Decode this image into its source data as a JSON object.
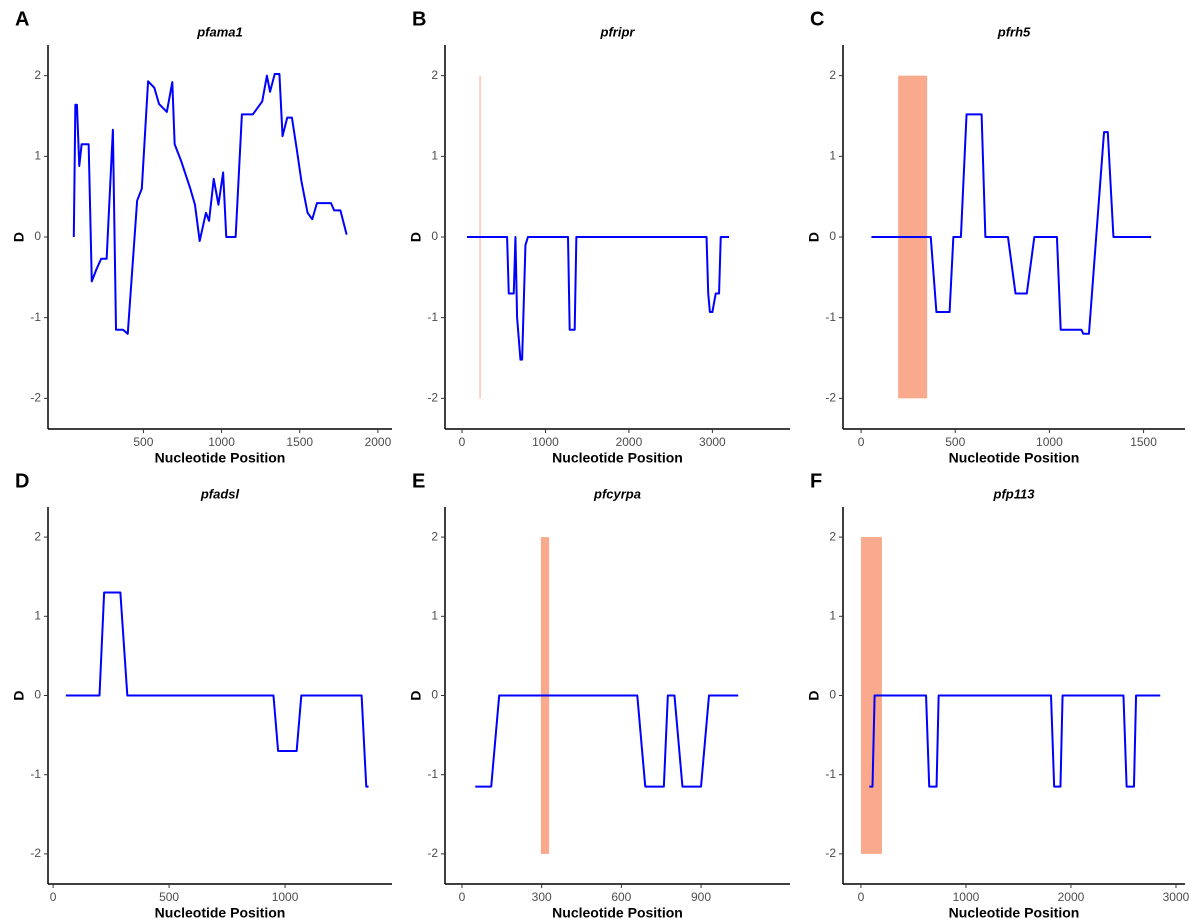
{
  "chart_data": [
    {
      "type": "line",
      "panel": "A",
      "title": "pfama1",
      "x_label": "Nucleotide Position",
      "y_label": "D",
      "color": "#0000ff",
      "x": [
        55,
        65,
        75,
        90,
        105,
        150,
        170,
        200,
        230,
        265,
        305,
        325,
        370,
        400,
        460,
        490,
        530,
        570,
        600,
        650,
        685,
        700,
        740,
        800,
        830,
        860,
        900,
        920,
        950,
        980,
        1010,
        1030,
        1090,
        1130,
        1200,
        1260,
        1290,
        1310,
        1340,
        1370,
        1390,
        1420,
        1450,
        1480,
        1510,
        1550,
        1580,
        1610,
        1700,
        1720,
        1760,
        1800
      ],
      "values": [
        0,
        1.64,
        1.64,
        0.88,
        1.15,
        1.15,
        -0.55,
        -0.4,
        -0.27,
        -0.27,
        1.33,
        -1.15,
        -1.15,
        -1.2,
        0.45,
        0.6,
        1.93,
        1.85,
        1.65,
        1.55,
        1.92,
        1.15,
        0.95,
        0.6,
        0.4,
        -0.05,
        0.3,
        0.2,
        0.72,
        0.4,
        0.8,
        0,
        0,
        1.52,
        1.52,
        1.68,
        2,
        1.8,
        2.02,
        2.02,
        1.25,
        1.48,
        1.48,
        1.1,
        0.7,
        0.3,
        0.22,
        0.42,
        0.42,
        0.33,
        0.33,
        0.03
      ],
      "xlim": [
        -110,
        2090
      ],
      "xticks": [
        500,
        1000,
        1500,
        2000
      ],
      "ylim": [
        -2.38,
        2.38
      ],
      "yticks": [
        -2,
        -1,
        0,
        1,
        2
      ]
    },
    {
      "type": "line",
      "panel": "B",
      "title": "pfripr",
      "x_label": "Nucleotide Position",
      "y_label": "D",
      "color": "#0000ff",
      "x": [
        60,
        540,
        560,
        620,
        640,
        660,
        700,
        720,
        760,
        790,
        1270,
        1290,
        1350,
        1370,
        2930,
        2950,
        2970,
        3000,
        3040,
        3080,
        3100,
        3200
      ],
      "values": [
        0,
        0,
        -0.7,
        -0.7,
        0,
        -1.0,
        -1.52,
        -1.52,
        -0.1,
        0,
        0,
        -1.15,
        -1.15,
        0,
        0,
        -0.7,
        -0.93,
        -0.93,
        -0.7,
        -0.7,
        0,
        0
      ],
      "highlight": {
        "x": [
          210,
          222
        ],
        "y": [
          -2,
          2
        ],
        "color": "#f9a98c"
      },
      "xlim": [
        -204,
        3930
      ],
      "xticks": [
        0,
        1000,
        2000,
        3000
      ],
      "ylim": [
        -2.38,
        2.38
      ],
      "yticks": [
        -2,
        -1,
        0,
        1,
        2
      ]
    },
    {
      "type": "line",
      "panel": "C",
      "title": "pfrh5",
      "x_label": "Nucleotide Position",
      "y_label": "D",
      "color": "#0000ff",
      "x": [
        55,
        370,
        400,
        470,
        490,
        530,
        560,
        640,
        660,
        780,
        820,
        880,
        920,
        1040,
        1060,
        1170,
        1180,
        1210,
        1290,
        1310,
        1340,
        1540
      ],
      "values": [
        0,
        0,
        -0.93,
        -0.93,
        0,
        0,
        1.52,
        1.52,
        0,
        0,
        -0.7,
        -0.7,
        0,
        0,
        -1.15,
        -1.15,
        -1.2,
        -1.2,
        1.3,
        1.3,
        0,
        0
      ],
      "highlight": {
        "x": [
          197,
          351
        ],
        "y": [
          -2,
          2
        ],
        "color": "#f9a98c"
      },
      "xlim": [
        -96,
        1720
      ],
      "xticks": [
        0,
        500,
        1000,
        1500
      ],
      "ylim": [
        -2.38,
        2.38
      ],
      "yticks": [
        -2,
        -1,
        0,
        1,
        2
      ]
    },
    {
      "type": "line",
      "panel": "D",
      "title": "pfadsl",
      "x_label": "Nucleotide Position",
      "y_label": "D",
      "color": "#0000ff",
      "x": [
        55,
        200,
        220,
        290,
        320,
        950,
        970,
        1050,
        1070,
        1330,
        1350,
        1360
      ],
      "values": [
        0,
        0,
        1.3,
        1.3,
        0,
        0,
        -0.7,
        -0.7,
        0,
        0,
        -1.15,
        -1.15
      ],
      "xlim": [
        -22,
        1461
      ],
      "xticks": [
        0,
        500,
        1000
      ],
      "ylim": [
        -2.38,
        2.38
      ],
      "yticks": [
        -2,
        -1,
        0,
        1,
        2
      ]
    },
    {
      "type": "line",
      "panel": "E",
      "title": "pfcyrpa",
      "x_label": "Nucleotide Position",
      "y_label": "D",
      "color": "#0000ff",
      "x": [
        50,
        110,
        140,
        660,
        690,
        760,
        775,
        800,
        830,
        900,
        930,
        1040
      ],
      "values": [
        -1.15,
        -1.15,
        0,
        0,
        -1.15,
        -1.15,
        0,
        0,
        -1.15,
        -1.15,
        0,
        0
      ],
      "highlight": {
        "x": [
          297,
          328
        ],
        "y": [
          -2,
          2
        ],
        "color": "#f9a98c"
      },
      "xlim": [
        -64,
        1235
      ],
      "xticks": [
        0,
        300,
        600,
        900
      ],
      "ylim": [
        -2.38,
        2.38
      ],
      "yticks": [
        -2,
        -1,
        0,
        1,
        2
      ]
    },
    {
      "type": "line",
      "panel": "F",
      "title": "pfp113",
      "x_label": "Nucleotide Position",
      "y_label": "D",
      "color": "#0000ff",
      "x": [
        80,
        110,
        130,
        620,
        650,
        720,
        740,
        1810,
        1840,
        1900,
        1920,
        2500,
        2530,
        2600,
        2620,
        2850
      ],
      "values": [
        -1.15,
        -1.15,
        0,
        0,
        -1.15,
        -1.15,
        0,
        0,
        -1.15,
        -1.15,
        0,
        0,
        -1.15,
        -1.15,
        0,
        0
      ],
      "highlight": {
        "x": [
          0,
          200
        ],
        "y": [
          -2,
          2
        ],
        "color": "#f9a98c"
      },
      "xlim": [
        -171,
        3086
      ],
      "xticks": [
        0,
        1000,
        2000,
        3000
      ],
      "ylim": [
        -2.38,
        2.38
      ],
      "yticks": [
        -2,
        -1,
        0,
        1,
        2
      ]
    }
  ]
}
